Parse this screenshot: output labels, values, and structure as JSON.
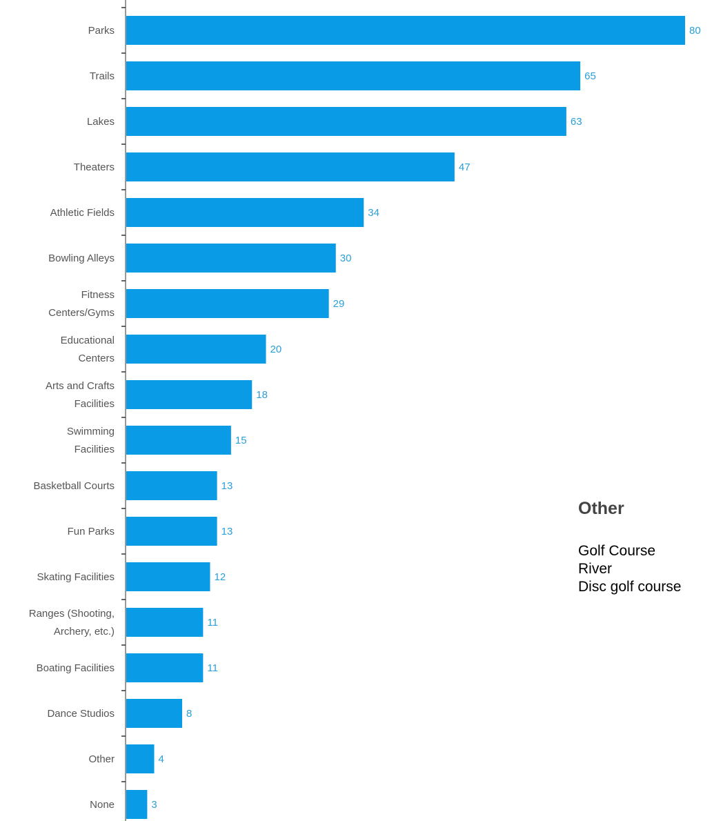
{
  "chart_data": {
    "type": "bar",
    "orientation": "horizontal",
    "categories": [
      [
        "Parks"
      ],
      [
        "Trails"
      ],
      [
        "Lakes"
      ],
      [
        "Theaters"
      ],
      [
        "Athletic Fields"
      ],
      [
        "Bowling Alleys"
      ],
      [
        "Fitness",
        "Centers/Gyms"
      ],
      [
        "Educational",
        "Centers"
      ],
      [
        "Arts and Crafts",
        "Facilities"
      ],
      [
        "Swimming",
        "Facilities"
      ],
      [
        "Basketball Courts"
      ],
      [
        "Fun Parks"
      ],
      [
        "Skating Facilities"
      ],
      [
        "Ranges (Shooting,",
        "Archery, etc.)"
      ],
      [
        "Boating Facilities"
      ],
      [
        "Dance Studios"
      ],
      [
        "Other"
      ],
      [
        "None"
      ]
    ],
    "values": [
      80,
      65,
      63,
      47,
      34,
      30,
      29,
      20,
      18,
      15,
      13,
      13,
      12,
      11,
      11,
      8,
      4,
      3
    ],
    "xlim": [
      0,
      80
    ],
    "grid": false,
    "bar_color": "#0a9be6",
    "value_label_color": "#2a9fd8"
  },
  "other_panel": {
    "title": "Other",
    "items": [
      "Golf Course",
      "River",
      "Disc golf course"
    ]
  }
}
